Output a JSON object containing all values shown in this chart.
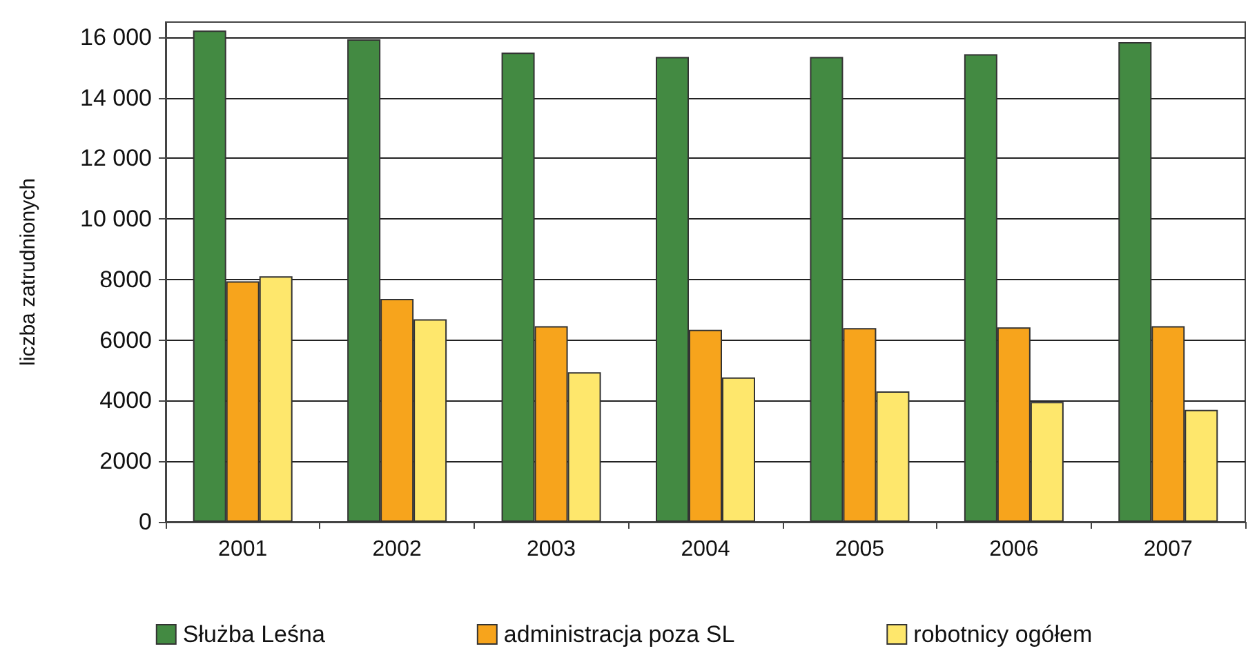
{
  "chart_data": {
    "type": "bar",
    "ylabel": "liczba zatrudnionych",
    "categories": [
      "2001",
      "2002",
      "2003",
      "2004",
      "2005",
      "2006",
      "2007"
    ],
    "series": [
      {
        "name": "Służba Leśna",
        "color": "#438a42",
        "values": [
          16220,
          15930,
          15490,
          15350,
          15350,
          15440,
          15840
        ]
      },
      {
        "name": "administracja poza SL",
        "color": "#f7a41c",
        "values": [
          7940,
          7360,
          6460,
          6340,
          6400,
          6420,
          6460
        ]
      },
      {
        "name": "robotnicy ogółem",
        "color": "#fee76c",
        "values": [
          8110,
          6690,
          4940,
          4770,
          4310,
          3960,
          3700
        ]
      }
    ],
    "ylim": [
      0,
      16500
    ],
    "yticks": [
      0,
      2000,
      4000,
      6000,
      8000,
      {
        "value": 10000,
        "label": "10 000"
      },
      {
        "value": 12000,
        "label": "12 000"
      },
      {
        "value": 14000,
        "label": "14 000"
      },
      {
        "value": 16000,
        "label": "16 000"
      }
    ],
    "grid": "y",
    "legend": "bottom"
  }
}
